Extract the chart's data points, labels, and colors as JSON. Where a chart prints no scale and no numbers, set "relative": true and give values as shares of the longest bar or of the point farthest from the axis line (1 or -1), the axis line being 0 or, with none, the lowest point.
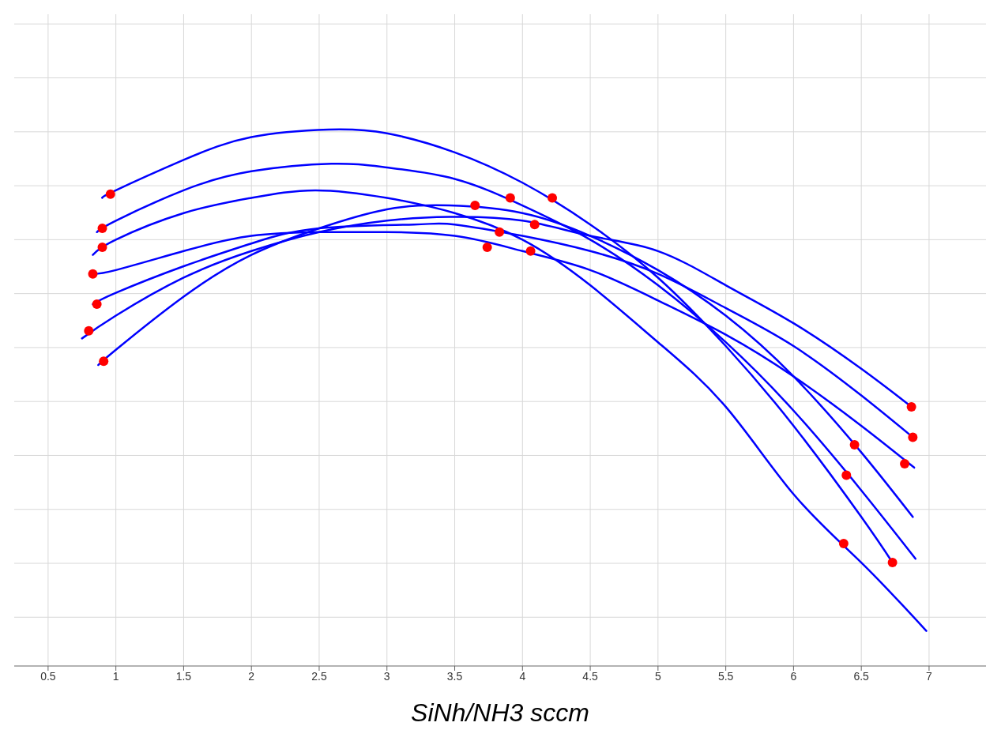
{
  "chart_data": {
    "type": "line",
    "xlabel": "SiNh/NH3 sccm",
    "relative": true,
    "grid": true,
    "xlim": [
      0.25,
      7.42
    ],
    "xticks": [
      0.5,
      1,
      1.5,
      2,
      2.5,
      3,
      3.5,
      4,
      4.5,
      5,
      5.5,
      6,
      6.5,
      7
    ],
    "marker": "none",
    "line_style": "solid",
    "series": [
      {
        "color": "#0000ff",
        "x": [
          0.9,
          1,
          1.5,
          2,
          2.57,
          3,
          3.5,
          4,
          4.5,
          5,
          5.5,
          6,
          6.5,
          6.73
        ],
        "values": [
          0.82,
          0.84,
          0.92,
          0.98,
          1.0,
          0.99,
          0.94,
          0.86,
          0.75,
          0.61,
          0.43,
          0.22,
          -0.02,
          -0.14
        ]
      },
      {
        "color": "#0000ff",
        "x": [
          0.86,
          1,
          1.5,
          2,
          2.59,
          3,
          3.5,
          4,
          4.5,
          5,
          5.5,
          6,
          6.5,
          6.9
        ],
        "values": [
          0.73,
          0.76,
          0.84,
          0.89,
          0.91,
          0.9,
          0.87,
          0.8,
          0.71,
          0.59,
          0.44,
          0.26,
          0.05,
          -0.13
        ]
      },
      {
        "color": "#0000ff",
        "x": [
          0.83,
          1,
          1.5,
          2,
          2.47,
          3,
          3.5,
          4,
          4.5,
          5,
          5.5,
          6,
          6.5,
          6.98
        ],
        "values": [
          0.67,
          0.71,
          0.78,
          0.82,
          0.84,
          0.82,
          0.78,
          0.71,
          0.59,
          0.44,
          0.27,
          0.04,
          -0.14,
          -0.32
        ]
      },
      {
        "color": "#0000ff",
        "x": [
          0.87,
          1,
          1.5,
          2,
          2.5,
          3,
          3.46,
          4,
          4.5,
          5,
          5.5,
          6,
          6.5,
          6.88
        ],
        "values": [
          0.38,
          0.42,
          0.56,
          0.67,
          0.74,
          0.79,
          0.8,
          0.78,
          0.72,
          0.63,
          0.51,
          0.35,
          0.15,
          -0.02
        ]
      },
      {
        "color": "#0000ff",
        "x": [
          0.75,
          1,
          1.5,
          2,
          2.5,
          3,
          3.46,
          4,
          4.5,
          5,
          5.5,
          6,
          6.5,
          6.87
        ],
        "values": [
          0.45,
          0.51,
          0.61,
          0.68,
          0.73,
          0.76,
          0.77,
          0.76,
          0.72,
          0.68,
          0.59,
          0.49,
          0.37,
          0.27
        ]
      },
      {
        "color": "#0000ff",
        "x": [
          0.83,
          1,
          1.5,
          2,
          2.5,
          2.81,
          3,
          3.5,
          4,
          4.5,
          5,
          5.5,
          6,
          6.5,
          6.89
        ],
        "values": [
          0.62,
          0.63,
          0.68,
          0.72,
          0.73,
          0.73,
          0.73,
          0.72,
          0.68,
          0.63,
          0.55,
          0.46,
          0.35,
          0.22,
          0.11
        ]
      },
      {
        "color": "#0000ff",
        "x": [
          0.83,
          1,
          1.5,
          2,
          2.5,
          3.2,
          3.5,
          4,
          4.5,
          5,
          5.5,
          6,
          6.5,
          6.88
        ],
        "values": [
          0.54,
          0.57,
          0.64,
          0.7,
          0.74,
          0.75,
          0.75,
          0.72,
          0.68,
          0.62,
          0.53,
          0.43,
          0.3,
          0.19
        ]
      },
      {
        "type": "scatter",
        "color": "#ff0000",
        "marker": "circle",
        "x": [
          0.96,
          0.9,
          0.9,
          0.83,
          0.86,
          0.8,
          0.91,
          3.65,
          3.91,
          4.22,
          3.83,
          4.09,
          3.74,
          4.06,
          6.87,
          6.88,
          6.82,
          6.45,
          6.39,
          6.37,
          6.73
        ],
        "values": [
          0.83,
          0.74,
          0.69,
          0.62,
          0.54,
          0.47,
          0.39,
          0.8,
          0.82,
          0.82,
          0.73,
          0.75,
          0.69,
          0.68,
          0.27,
          0.19,
          0.12,
          0.17,
          0.09,
          -0.09,
          -0.14
        ]
      }
    ]
  }
}
